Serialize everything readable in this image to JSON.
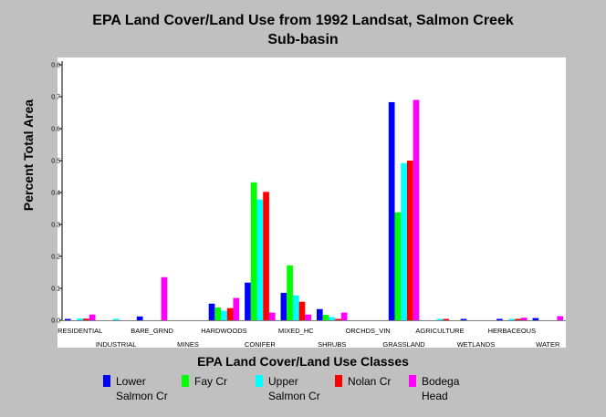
{
  "chart_data": {
    "type": "bar",
    "title": "EPA Land Cover/Land Use from 1992 Landsat, Salmon Creek Sub-basin",
    "title_line1": "EPA Land Cover/Land Use from 1992 Landsat, Salmon Creek",
    "title_line2": "Sub-basin",
    "xlabel": "EPA Land Cover/Land Use Classes",
    "ylabel": "Percent Total Area",
    "ylim": [
      0,
      0.8
    ],
    "yticks": [
      "0.0",
      "0.1",
      "0.2",
      "0.3",
      "0.4",
      "0.5",
      "0.6",
      "0.7",
      "0.8"
    ],
    "grid": false,
    "legend_placement": "bottom",
    "categories": [
      "RESIDENTIAL",
      "INDUSTRIAL",
      "BARE_GRND",
      "MINES",
      "HARDWOODS",
      "CONIFER",
      "MIXED_HC",
      "SHRUBS",
      "ORCHDS_VIN",
      "GRASSLAND",
      "AGRICULTURE",
      "WETLANDS",
      "HERBACEOUS",
      "WATER"
    ],
    "series": [
      {
        "name": "Lower Salmon Cr",
        "name_line1": "Lower",
        "name_line2": "Salmon Cr",
        "color": "#0000ff",
        "values": [
          0.002,
          0.0,
          0.012,
          0.0,
          0.052,
          0.118,
          0.086,
          0.035,
          0.0,
          0.683,
          0.0,
          0.002,
          0.003,
          0.007
        ]
      },
      {
        "name": "Fay Cr",
        "name_line1": "Fay Cr",
        "name_line2": "",
        "color": "#00ff00",
        "values": [
          0.0,
          0.0,
          0.0,
          0.0,
          0.04,
          0.432,
          0.172,
          0.017,
          0.0,
          0.338,
          0.0,
          0.0,
          0.0,
          0.0
        ]
      },
      {
        "name": "Upper Salmon Cr",
        "name_line1": "Upper",
        "name_line2": "Salmon Cr",
        "color": "#00ffff",
        "values": [
          0.006,
          0.002,
          0.0,
          0.0,
          0.03,
          0.378,
          0.078,
          0.01,
          0.0,
          0.492,
          0.003,
          0.0,
          0.002,
          0.0
        ]
      },
      {
        "name": "Nolan Cr",
        "name_line1": "Nolan Cr",
        "name_line2": "",
        "color": "#ff0000",
        "values": [
          0.005,
          0.0,
          0.0,
          0.0,
          0.038,
          0.402,
          0.058,
          0.004,
          0.0,
          0.5,
          0.002,
          0.0,
          0.003,
          0.0
        ]
      },
      {
        "name": "Bodega Head",
        "name_line1": "Bodega",
        "name_line2": "Head",
        "color": "#ff00ff",
        "values": [
          0.018,
          0.0,
          0.135,
          0.0,
          0.07,
          0.024,
          0.018,
          0.024,
          0.0,
          0.69,
          0.0,
          0.0,
          0.008,
          0.013
        ]
      }
    ]
  }
}
